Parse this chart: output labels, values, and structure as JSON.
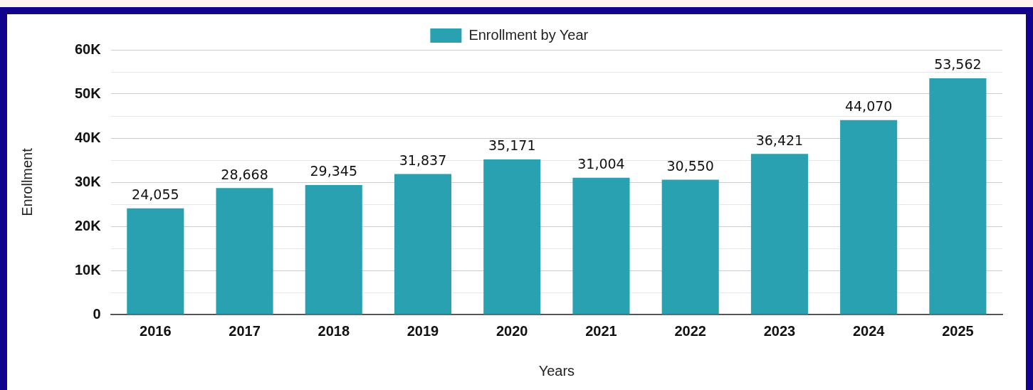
{
  "chart_data": {
    "type": "bar",
    "xlabel": "Years",
    "ylabel": "Enrollment",
    "categories": [
      "2016",
      "2017",
      "2018",
      "2019",
      "2020",
      "2021",
      "2022",
      "2023",
      "2024",
      "2025"
    ],
    "series": [
      {
        "name": "Enrollment by Year",
        "color": "#2aa1b1",
        "values": [
          24055,
          28668,
          29345,
          31837,
          35171,
          31004,
          30550,
          36421,
          44070,
          53562
        ],
        "value_labels": [
          "24,055",
          "28,668",
          "29,345",
          "31,837",
          "35,171",
          "31,004",
          "30,550",
          "36,421",
          "44,070",
          "53,562"
        ]
      }
    ],
    "ylim": [
      0,
      60000
    ],
    "yticks": [
      {
        "value": 0,
        "label": "0"
      },
      {
        "value": 5000,
        "label": null
      },
      {
        "value": 10000,
        "label": "10K"
      },
      {
        "value": 15000,
        "label": null
      },
      {
        "value": 20000,
        "label": "20K"
      },
      {
        "value": 25000,
        "label": null
      },
      {
        "value": 30000,
        "label": "30K"
      },
      {
        "value": 35000,
        "label": null
      },
      {
        "value": 40000,
        "label": "40K"
      },
      {
        "value": 45000,
        "label": null
      },
      {
        "value": 50000,
        "label": "50K"
      },
      {
        "value": 55000,
        "label": null
      },
      {
        "value": 60000,
        "label": "60K"
      }
    ],
    "grid": "y",
    "legend": "top"
  }
}
